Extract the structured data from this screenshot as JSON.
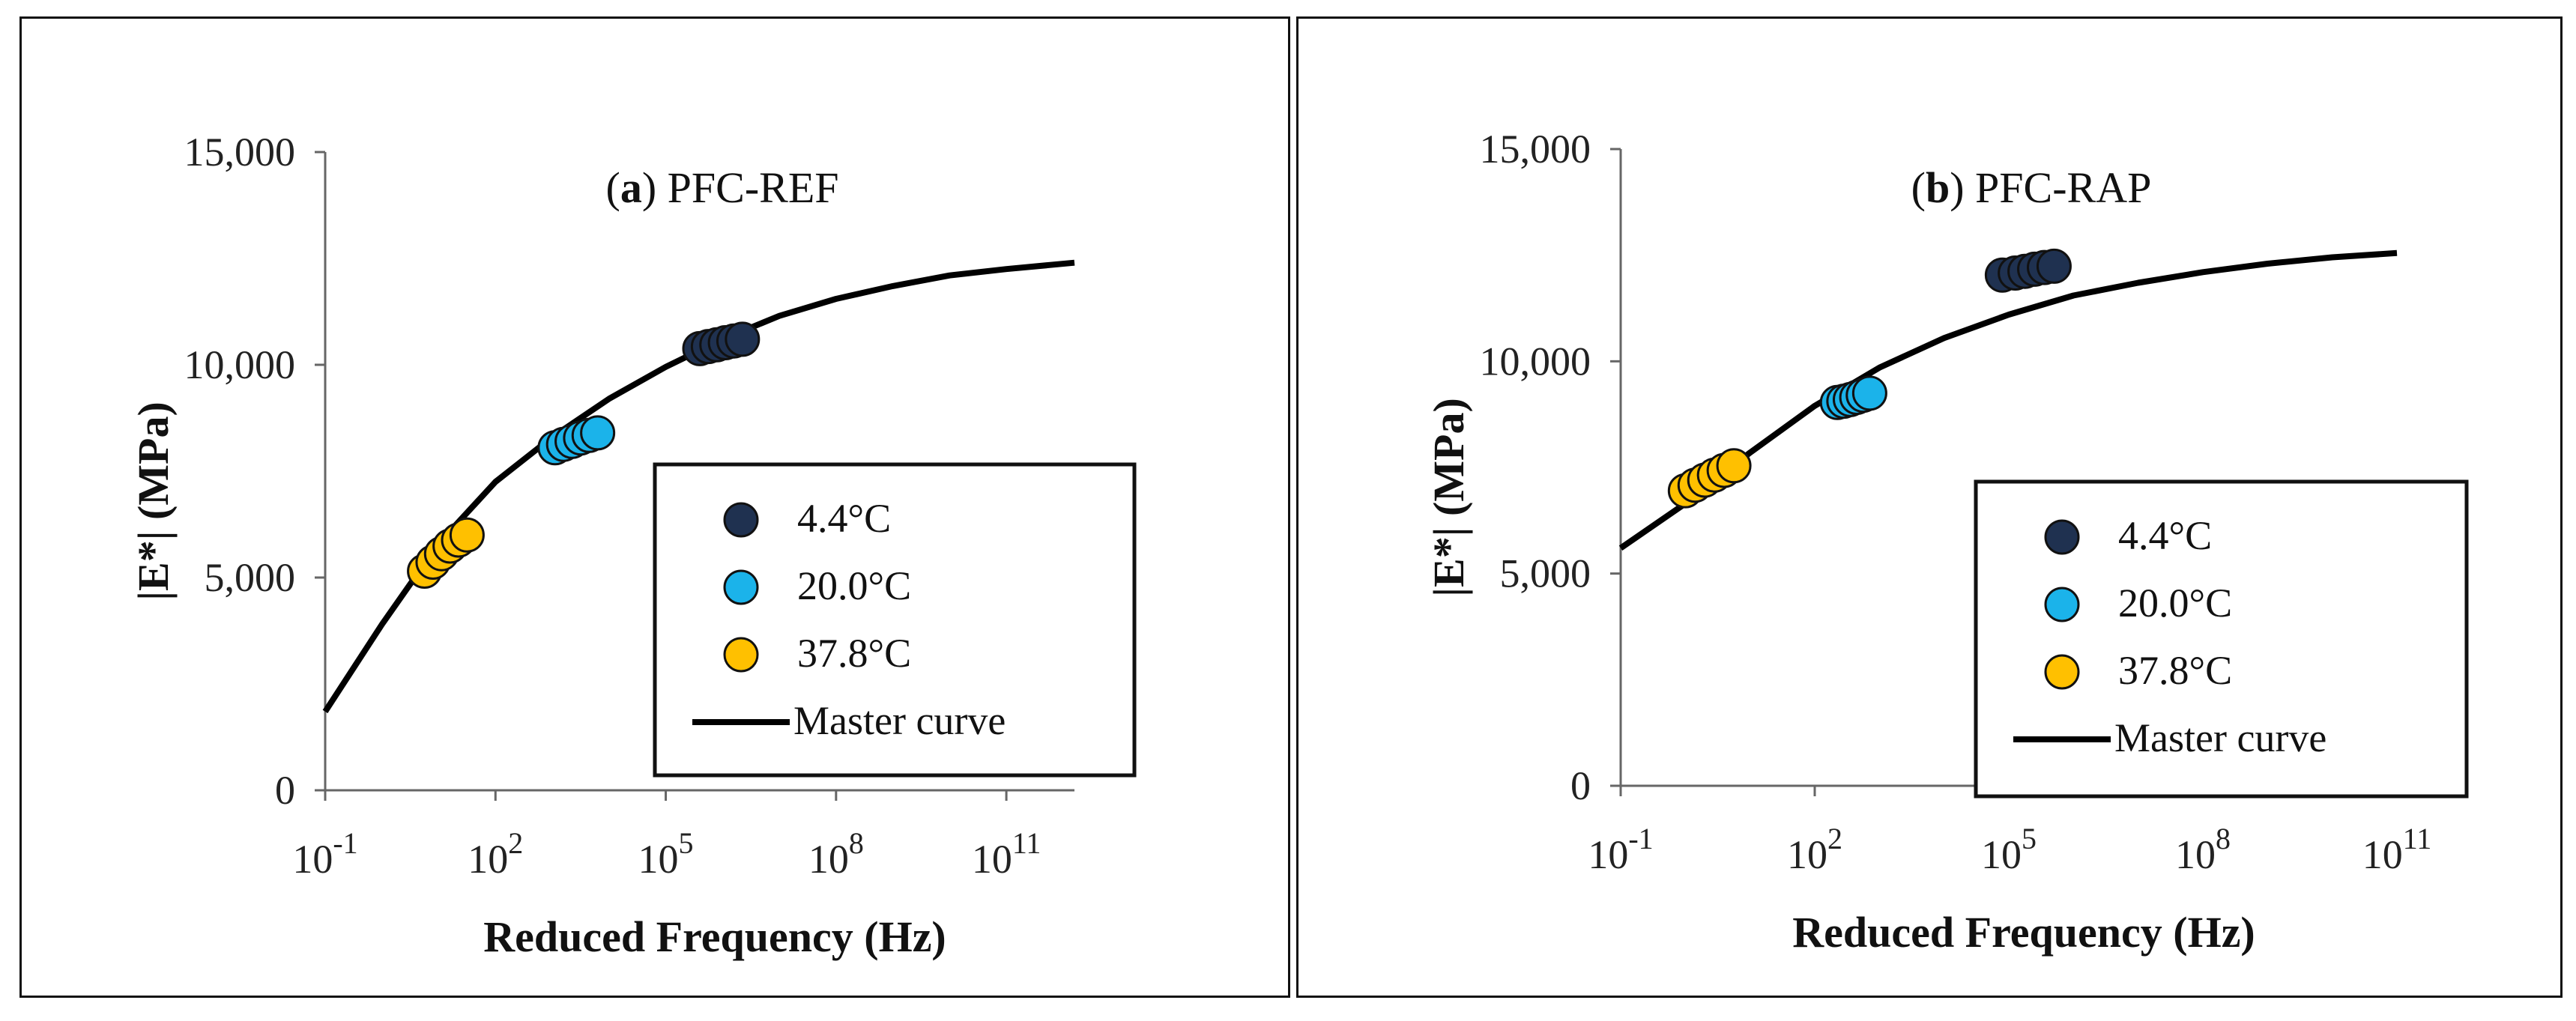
{
  "chart_data": [
    {
      "id": "a",
      "type": "scatter",
      "title_label": "a",
      "title_text": "PFC-REF",
      "xlabel": "Reduced Frequency (Hz)",
      "ylabel": "|E*| (MPa)",
      "x_scale": "log10",
      "xlim_exp": [
        -1,
        12.2
      ],
      "ylim": [
        0,
        15000
      ],
      "x_ticks_exp": [
        -1,
        2,
        5,
        8,
        11
      ],
      "y_ticks": [
        0,
        5000,
        10000,
        15000
      ],
      "y_tick_labels": [
        "0",
        "5,000",
        "10,000",
        "15,000"
      ],
      "legend_position": "lower-right",
      "series": [
        {
          "name": "4.4°C",
          "color": "#1f3150",
          "points": [
            [
              5.6,
              10380
            ],
            [
              5.75,
              10430
            ],
            [
              5.9,
              10470
            ],
            [
              6.05,
              10520
            ],
            [
              6.2,
              10560
            ],
            [
              6.35,
              10600
            ]
          ]
        },
        {
          "name": "20.0°C",
          "color": "#1bb3ea",
          "points": [
            [
              3.05,
              8050
            ],
            [
              3.2,
              8130
            ],
            [
              3.35,
              8200
            ],
            [
              3.5,
              8280
            ],
            [
              3.65,
              8340
            ],
            [
              3.8,
              8400
            ]
          ]
        },
        {
          "name": "37.8°C",
          "color": "#ffc000",
          "points": [
            [
              0.75,
              5150
            ],
            [
              0.9,
              5360
            ],
            [
              1.05,
              5560
            ],
            [
              1.2,
              5740
            ],
            [
              1.35,
              5880
            ],
            [
              1.5,
              6000
            ]
          ]
        }
      ],
      "master_curve": {
        "name": "Master curve",
        "color": "#000000",
        "points": [
          [
            -1,
            1850
          ],
          [
            0,
            3900
          ],
          [
            1,
            5800
          ],
          [
            2,
            7250
          ],
          [
            3,
            8300
          ],
          [
            4,
            9200
          ],
          [
            5,
            9950
          ],
          [
            6,
            10600
          ],
          [
            7,
            11150
          ],
          [
            8,
            11550
          ],
          [
            9,
            11850
          ],
          [
            10,
            12100
          ],
          [
            11,
            12250
          ],
          [
            12.2,
            12400
          ]
        ]
      }
    },
    {
      "id": "b",
      "type": "scatter",
      "title_label": "b",
      "title_text": "PFC-RAP",
      "xlabel": "Reduced Frequency (Hz)",
      "ylabel": "|E*| (MPa)",
      "x_scale": "log10",
      "xlim_exp": [
        -1,
        11
      ],
      "ylim": [
        0,
        15000
      ],
      "x_ticks_exp": [
        -1,
        2,
        5,
        8,
        11
      ],
      "y_ticks": [
        0,
        5000,
        10000,
        15000
      ],
      "y_tick_labels": [
        "0",
        "5,000",
        "10,000",
        "15,000"
      ],
      "legend_position": "lower-right",
      "series": [
        {
          "name": "4.4°C",
          "color": "#1f3150",
          "points": [
            [
              4.9,
              12030
            ],
            [
              5.1,
              12080
            ],
            [
              5.25,
              12120
            ],
            [
              5.4,
              12170
            ],
            [
              5.55,
              12210
            ],
            [
              5.7,
              12240
            ]
          ]
        },
        {
          "name": "20.0°C",
          "color": "#1bb3ea",
          "points": [
            [
              2.35,
              9030
            ],
            [
              2.45,
              9060
            ],
            [
              2.55,
              9100
            ],
            [
              2.65,
              9150
            ],
            [
              2.75,
              9200
            ],
            [
              2.85,
              9250
            ]
          ]
        },
        {
          "name": "37.8°C",
          "color": "#ffc000",
          "points": [
            [
              0.0,
              6950
            ],
            [
              0.15,
              7080
            ],
            [
              0.3,
              7200
            ],
            [
              0.45,
              7320
            ],
            [
              0.6,
              7430
            ],
            [
              0.75,
              7540
            ]
          ]
        }
      ],
      "master_curve": {
        "name": "Master curve",
        "color": "#000000",
        "points": [
          [
            -1,
            5600
          ],
          [
            0,
            6650
          ],
          [
            1,
            7850
          ],
          [
            2,
            8950
          ],
          [
            3,
            9850
          ],
          [
            4,
            10550
          ],
          [
            5,
            11100
          ],
          [
            6,
            11550
          ],
          [
            7,
            11850
          ],
          [
            8,
            12100
          ],
          [
            9,
            12300
          ],
          [
            10,
            12450
          ],
          [
            11,
            12550
          ]
        ]
      }
    }
  ]
}
